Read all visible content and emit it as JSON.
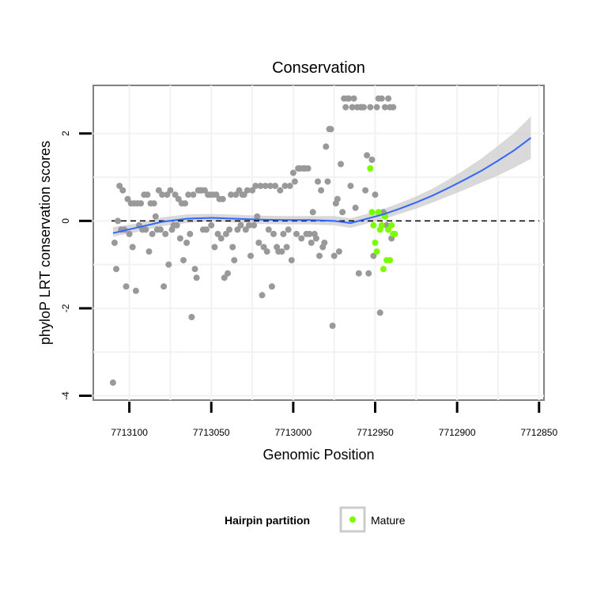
{
  "chart_data": {
    "type": "scatter",
    "title": "Conservation",
    "xlabel": "Genomic Position",
    "ylabel": "phyloP LRT conservation scores",
    "x_reversed": true,
    "xlim": [
      7713122,
      7712847
    ],
    "ylim": [
      -4.1,
      3.1
    ],
    "x_ticks": [
      7713100,
      7713050,
      7713000,
      7712950,
      7712900,
      7712850
    ],
    "x_tick_labels": [
      "7713100",
      "7713050",
      "7713000",
      "7712950",
      "7712900",
      "7712850"
    ],
    "y_ticks": [
      -4,
      -2,
      0,
      2
    ],
    "y_tick_labels": [
      "-4",
      "-2",
      "0",
      "2"
    ],
    "reference_line": {
      "y": 0,
      "style": "dashed"
    },
    "legend": {
      "title": "Hairpin partition",
      "entries": [
        {
          "label": "Mature",
          "color": "#7cfc00"
        }
      ],
      "position": "bottom"
    },
    "colors": {
      "other": "#999999",
      "mature": "#7cfc00",
      "smooth": "#3366ff",
      "band": "#cccccc"
    },
    "series": [
      {
        "name": "Other",
        "points": [
          [
            7713110,
            -3.7
          ],
          [
            7713109,
            -0.5
          ],
          [
            7713108,
            -1.1
          ],
          [
            7713107,
            0
          ],
          [
            7713106,
            0.8
          ],
          [
            7713105,
            -0.2
          ],
          [
            7713104,
            0.7
          ],
          [
            7713103,
            -0.2
          ],
          [
            7713102,
            -1.5
          ],
          [
            7713101,
            0.5
          ],
          [
            7713100,
            -0.3
          ],
          [
            7713099,
            0.4
          ],
          [
            7713098,
            -0.6
          ],
          [
            7713097,
            0.4
          ],
          [
            7713096,
            -1.6
          ],
          [
            7713095,
            0.4
          ],
          [
            7713094,
            -0.1
          ],
          [
            7713093,
            0.4
          ],
          [
            7713092,
            -0.2
          ],
          [
            7713091,
            0.6
          ],
          [
            7713090,
            -0.2
          ],
          [
            7713089,
            0.6
          ],
          [
            7713088,
            -0.7
          ],
          [
            7713087,
            0.4
          ],
          [
            7713086,
            -0.3
          ],
          [
            7713085,
            0.4
          ],
          [
            7713084,
            0.1
          ],
          [
            7713083,
            -0.2
          ],
          [
            7713082,
            0.7
          ],
          [
            7713081,
            -0.2
          ],
          [
            7713080,
            0.6
          ],
          [
            7713079,
            -1.5
          ],
          [
            7713078,
            -0.3
          ],
          [
            7713077,
            0.6
          ],
          [
            7713076,
            -1.0
          ],
          [
            7713075,
            0.7
          ],
          [
            7713074,
            -0.2
          ],
          [
            7713073,
            -0.1
          ],
          [
            7713072,
            0.6
          ],
          [
            7713071,
            -0.1
          ],
          [
            7713070,
            0.5
          ],
          [
            7713069,
            -0.4
          ],
          [
            7713068,
            0.4
          ],
          [
            7713067,
            -0.9
          ],
          [
            7713066,
            0.4
          ],
          [
            7713065,
            -0.5
          ],
          [
            7713064,
            0.6
          ],
          [
            7713063,
            -0.3
          ],
          [
            7713062,
            -2.2
          ],
          [
            7713061,
            0.6
          ],
          [
            7713060,
            -1.1
          ],
          [
            7713059,
            -1.3
          ],
          [
            7713058,
            0.7
          ],
          [
            7713057,
            0.7
          ],
          [
            7713056,
            0.7
          ],
          [
            7713055,
            -0.2
          ],
          [
            7713054,
            0.7
          ],
          [
            7713053,
            -0.2
          ],
          [
            7713052,
            0.6
          ],
          [
            7713051,
            0.6
          ],
          [
            7713050,
            -0.1
          ],
          [
            7713049,
            0.6
          ],
          [
            7713048,
            -0.6
          ],
          [
            7713047,
            0.6
          ],
          [
            7713046,
            -0.3
          ],
          [
            7713045,
            0.5
          ],
          [
            7713044,
            -0.4
          ],
          [
            7713043,
            0.5
          ],
          [
            7713042,
            -1.3
          ],
          [
            7713041,
            -0.3
          ],
          [
            7713040,
            -1.2
          ],
          [
            7713039,
            -0.2
          ],
          [
            7713038,
            0.6
          ],
          [
            7713037,
            -0.6
          ],
          [
            7713036,
            -0.9
          ],
          [
            7713035,
            0.6
          ],
          [
            7713034,
            -0.2
          ],
          [
            7713033,
            0.7
          ],
          [
            7713032,
            -0.1
          ],
          [
            7713031,
            0.6
          ],
          [
            7713030,
            0.6
          ],
          [
            7713029,
            -0.2
          ],
          [
            7713028,
            0.7
          ],
          [
            7713027,
            -0.1
          ],
          [
            7713026,
            -0.8
          ],
          [
            7713025,
            0.7
          ],
          [
            7713024,
            -0.1
          ],
          [
            7713023,
            0.8
          ],
          [
            7713022,
            0.1
          ],
          [
            7713021,
            -0.5
          ],
          [
            7713020,
            0.8
          ],
          [
            7713019,
            -1.7
          ],
          [
            7713018,
            -0.6
          ],
          [
            7713017,
            0.8
          ],
          [
            7713016,
            -0.7
          ],
          [
            7713015,
            -0.2
          ],
          [
            7713014,
            0.8
          ],
          [
            7713013,
            -1.5
          ],
          [
            7713012,
            -0.3
          ],
          [
            7713011,
            0.8
          ],
          [
            7713010,
            -0.6
          ],
          [
            7713009,
            -0.7
          ],
          [
            7713008,
            0.7
          ],
          [
            7713007,
            -0.7
          ],
          [
            7713006,
            -0.3
          ],
          [
            7713005,
            0.8
          ],
          [
            7713004,
            -0.6
          ],
          [
            7713003,
            -0.2
          ],
          [
            7713002,
            0.8
          ],
          [
            7713001,
            -0.9
          ],
          [
            7713000,
            1.1
          ],
          [
            7712999,
            0.9
          ],
          [
            7712998,
            -0.3
          ],
          [
            7712997,
            1.2
          ],
          [
            7712996,
            1.2
          ],
          [
            7712995,
            -0.4
          ],
          [
            7712994,
            1.2
          ],
          [
            7712993,
            1.2
          ],
          [
            7712992,
            -0.3
          ],
          [
            7712991,
            1.2
          ],
          [
            7712990,
            -0.3
          ],
          [
            7712989,
            -0.5
          ],
          [
            7712988,
            0.2
          ],
          [
            7712987,
            -0.3
          ],
          [
            7712986,
            -0.4
          ],
          [
            7712985,
            0.9
          ],
          [
            7712984,
            -0.8
          ],
          [
            7712983,
            0.7
          ],
          [
            7712982,
            -0.6
          ],
          [
            7712981,
            -0.5
          ],
          [
            7712980,
            1.7
          ],
          [
            7712979,
            0.9
          ],
          [
            7712978,
            2.1
          ],
          [
            7712977,
            2.1
          ],
          [
            7712976,
            -2.4
          ],
          [
            7712975,
            -0.8
          ],
          [
            7712974,
            0.4
          ],
          [
            7712973,
            0.5
          ],
          [
            7712972,
            -0.7
          ],
          [
            7712971,
            1.3
          ],
          [
            7712970,
            0.2
          ],
          [
            7712969,
            2.8
          ],
          [
            7712968,
            2.6
          ],
          [
            7712967,
            2.8
          ],
          [
            7712966,
            2.8
          ],
          [
            7712965,
            0.8
          ],
          [
            7712964,
            2.6
          ],
          [
            7712963,
            2.8
          ],
          [
            7712962,
            0.3
          ],
          [
            7712961,
            2.6
          ],
          [
            7712960,
            -1.2
          ],
          [
            7712959,
            2.6
          ],
          [
            7712958,
            2.6
          ],
          [
            7712957,
            2.6
          ],
          [
            7712956,
            0.7
          ],
          [
            7712955,
            1.5
          ],
          [
            7712954,
            -1.2
          ],
          [
            7712953,
            2.6
          ],
          [
            7712952,
            1.4
          ],
          [
            7712951,
            -0.8
          ],
          [
            7712950,
            0.6
          ],
          [
            7712949,
            2.6
          ],
          [
            7712948,
            2.8
          ],
          [
            7712947,
            -2.1
          ],
          [
            7712946,
            2.8
          ],
          [
            7712945,
            0.2
          ],
          [
            7712944,
            2.6
          ],
          [
            7712943,
            -0.1
          ],
          [
            7712942,
            2.8
          ],
          [
            7712941,
            2.6
          ],
          [
            7712940,
            -0.4
          ],
          [
            7712939,
            2.6
          ]
        ]
      },
      {
        "name": "Mature",
        "points": [
          [
            7712953,
            1.2
          ],
          [
            7712952,
            0.2
          ],
          [
            7712951,
            -0.1
          ],
          [
            7712950,
            -0.5
          ],
          [
            7712949,
            -0.7
          ],
          [
            7712948,
            0.2
          ],
          [
            7712947,
            -0.2
          ],
          [
            7712946,
            -0.1
          ],
          [
            7712945,
            -1.1
          ],
          [
            7712944,
            0.1
          ],
          [
            7712943,
            -0.9
          ],
          [
            7712942,
            -0.2
          ],
          [
            7712941,
            -0.9
          ],
          [
            7712940,
            -0.1
          ],
          [
            7712939,
            -0.3
          ],
          [
            7712938,
            -0.3
          ]
        ]
      }
    ],
    "smooth_line": {
      "x": [
        7713110,
        7713095,
        7713080,
        7713065,
        7713050,
        7713035,
        7713020,
        7713005,
        7712990,
        7712975,
        7712965,
        7712955,
        7712945,
        7712935,
        7712925,
        7712915,
        7712905,
        7712895,
        7712885,
        7712875,
        7712865,
        7712855
      ],
      "y": [
        -0.28,
        -0.15,
        -0.02,
        0.05,
        0.07,
        0.05,
        0.03,
        0.02,
        0.02,
        0.0,
        -0.05,
        0.05,
        0.15,
        0.28,
        0.42,
        0.58,
        0.76,
        0.95,
        1.15,
        1.38,
        1.62,
        1.9
      ],
      "lower": [
        -0.36,
        -0.25,
        -0.12,
        -0.05,
        -0.01,
        -0.04,
        -0.07,
        -0.08,
        -0.08,
        -0.1,
        -0.16,
        -0.06,
        0.04,
        0.16,
        0.28,
        0.42,
        0.57,
        0.72,
        0.88,
        1.04,
        1.22,
        1.42
      ],
      "upper": [
        -0.14,
        -0.06,
        0.08,
        0.15,
        0.16,
        0.14,
        0.12,
        0.11,
        0.11,
        0.11,
        0.06,
        0.16,
        0.27,
        0.41,
        0.56,
        0.74,
        0.95,
        1.18,
        1.43,
        1.72,
        2.02,
        2.39
      ]
    }
  }
}
